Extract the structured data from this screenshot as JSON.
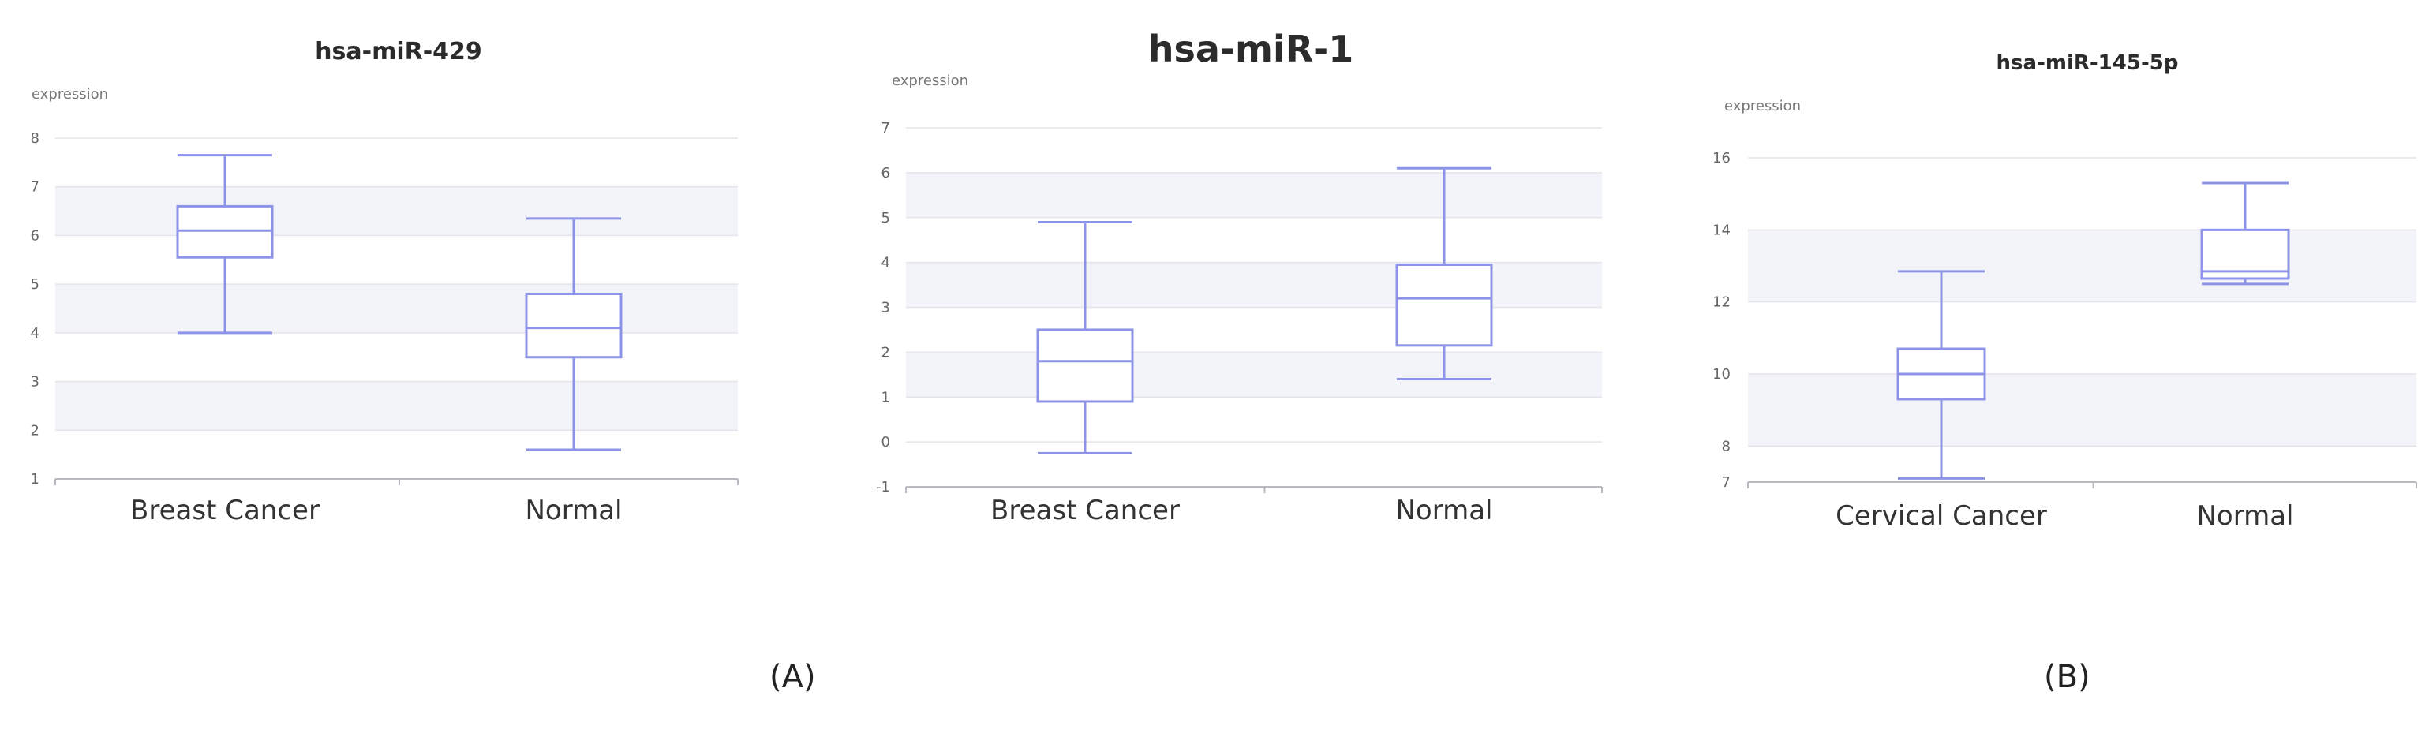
{
  "panel_labels": {
    "a": "(A)",
    "b": "(B)"
  },
  "colors": {
    "box": "#8d93e6",
    "band": "#f3f4fa",
    "grid": "#e4e4ea",
    "axis": "#b9b9c2",
    "text": "#333333",
    "title": "#2b2b2b"
  },
  "chart_data": [
    {
      "type": "boxplot",
      "title": "hsa-miR-429",
      "ylabel": "expression",
      "ylim": [
        1,
        8
      ],
      "yticks": [
        1,
        2,
        3,
        4,
        5,
        6,
        7,
        8
      ],
      "shaded_bands": [
        [
          2,
          3
        ],
        [
          4,
          5
        ],
        [
          6,
          7
        ]
      ],
      "grid": true,
      "categories": [
        "Breast Cancer",
        "Normal"
      ],
      "boxes": [
        {
          "category": "Breast Cancer",
          "min": 4.0,
          "q1": 5.55,
          "median": 6.1,
          "q3": 6.6,
          "max": 7.65
        },
        {
          "category": "Normal",
          "min": 1.6,
          "q1": 3.5,
          "median": 4.1,
          "q3": 4.8,
          "max": 6.35
        }
      ]
    },
    {
      "type": "boxplot",
      "title": "hsa-miR-1",
      "ylabel": "expression",
      "ylim": [
        -1,
        7
      ],
      "yticks": [
        -1,
        0,
        1,
        2,
        3,
        4,
        5,
        6,
        7
      ],
      "shaded_bands": [
        [
          1,
          2
        ],
        [
          3,
          4
        ],
        [
          5,
          6
        ]
      ],
      "grid": true,
      "categories": [
        "Breast Cancer",
        "Normal"
      ],
      "boxes": [
        {
          "category": "Breast Cancer",
          "min": -0.25,
          "q1": 0.9,
          "median": 1.8,
          "q3": 2.5,
          "max": 4.9
        },
        {
          "category": "Normal",
          "min": 1.4,
          "q1": 2.15,
          "median": 3.2,
          "q3": 3.95,
          "max": 6.1
        }
      ]
    },
    {
      "type": "boxplot",
      "title": "hsa-miR-145-5p",
      "ylabel": "expression",
      "ylim": [
        7,
        16
      ],
      "yticks": [
        7,
        8,
        10,
        12,
        14,
        16
      ],
      "shaded_bands": [
        [
          8,
          10
        ],
        [
          12,
          14
        ]
      ],
      "grid": true,
      "categories": [
        "Cervical Cancer",
        "Normal"
      ],
      "boxes": [
        {
          "category": "Cervical Cancer",
          "min": 7.1,
          "q1": 9.3,
          "median": 10.0,
          "q3": 10.7,
          "max": 12.85
        },
        {
          "category": "Normal",
          "min": 12.5,
          "q1": 12.65,
          "median": 12.85,
          "q3": 14.0,
          "max": 15.3
        }
      ]
    }
  ]
}
